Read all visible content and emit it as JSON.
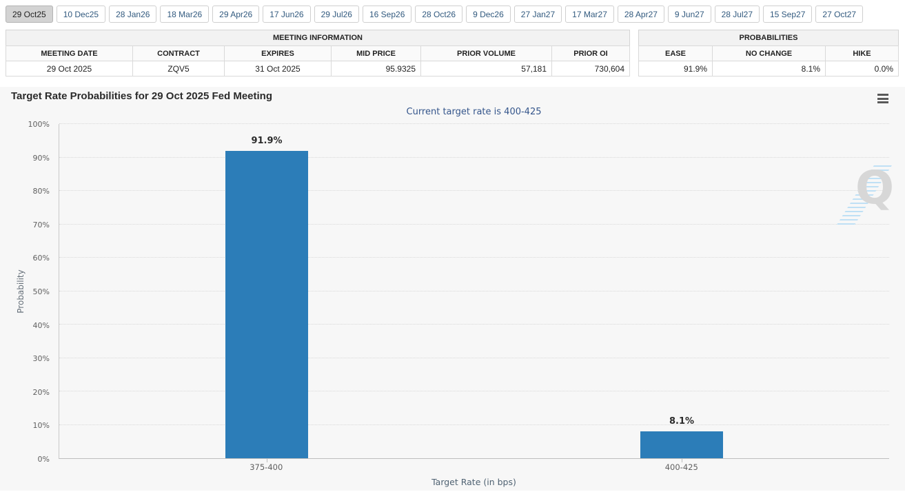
{
  "tabs": {
    "items": [
      "29 Oct25",
      "10 Dec25",
      "28 Jan26",
      "18 Mar26",
      "29 Apr26",
      "17 Jun26",
      "29 Jul26",
      "16 Sep26",
      "28 Oct26",
      "9 Dec26",
      "27 Jan27",
      "17 Mar27",
      "28 Apr27",
      "9 Jun27",
      "28 Jul27",
      "15 Sep27",
      "27 Oct27"
    ],
    "selected": "29 Oct25"
  },
  "meeting_info": {
    "caption": "MEETING INFORMATION",
    "columns": [
      "MEETING DATE",
      "CONTRACT",
      "EXPIRES",
      "MID PRICE",
      "PRIOR VOLUME",
      "PRIOR OI"
    ],
    "row": {
      "meeting_date": "29 Oct 2025",
      "contract": "ZQV5",
      "expires": "31 Oct 2025",
      "mid_price": "95.9325",
      "prior_volume": "57,181",
      "prior_oi": "730,604"
    }
  },
  "probabilities": {
    "caption": "PROBABILITIES",
    "columns": [
      "EASE",
      "NO CHANGE",
      "HIKE"
    ],
    "row": {
      "ease": "91.9%",
      "no_change": "8.1%",
      "hike": "0.0%"
    }
  },
  "chart_data": {
    "type": "bar",
    "title": "Target Rate Probabilities for 29 Oct 2025 Fed Meeting",
    "subtitle": "Current target rate is 400-425",
    "categories": [
      "375-400",
      "400-425"
    ],
    "values": [
      91.9,
      8.1
    ],
    "value_labels": [
      "91.9%",
      "8.1%"
    ],
    "xlabel": "Target Rate (in bps)",
    "ylabel": "Probability",
    "ylim": [
      0,
      100
    ],
    "yticks": [
      "0%",
      "10%",
      "20%",
      "30%",
      "40%",
      "50%",
      "60%",
      "70%",
      "80%",
      "90%",
      "100%"
    ],
    "grid": "horizontal-dotted",
    "legend": "none",
    "bar_color": "#2c7db8",
    "watermark_letter": "Q"
  },
  "colors": {
    "bar": "#2c7db8",
    "subtitle_text": "#34558b",
    "tab_text": "#31597e",
    "chart_background": "#f7f7f7"
  }
}
